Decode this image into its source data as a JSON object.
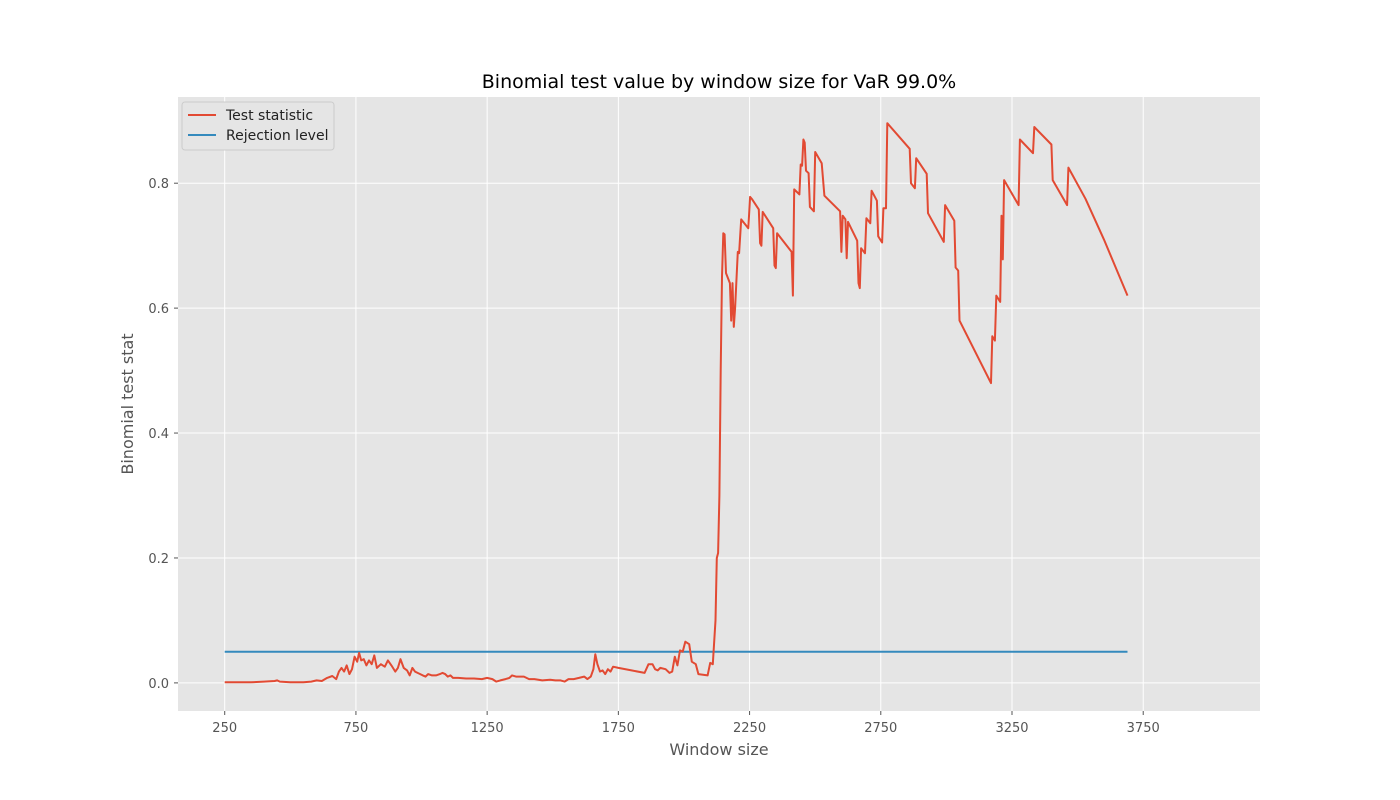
{
  "chart_data": {
    "type": "line",
    "title": "Binomial test value by window size for VaR 99.0%",
    "xlabel": "Window size",
    "ylabel": "Binomial test stat",
    "xlim": [
      72,
      4195
    ],
    "ylim": [
      -0.045,
      0.938
    ],
    "xticks": [
      250,
      750,
      1250,
      1750,
      2250,
      2750,
      3250,
      3750
    ],
    "yticks": [
      0.0,
      0.2,
      0.4,
      0.6,
      0.8
    ],
    "ytick_labels": [
      "0.0",
      "0.2",
      "0.4",
      "0.6",
      "0.8"
    ],
    "grid": true,
    "legend_position": "top-left",
    "series": [
      {
        "name": "Test statistic",
        "color": "#E24A33",
        "points": [
          [
            250,
            0.001
          ],
          [
            300,
            0.001
          ],
          [
            350,
            0.001
          ],
          [
            400,
            0.002
          ],
          [
            440,
            0.003
          ],
          [
            450,
            0.004
          ],
          [
            460,
            0.002
          ],
          [
            500,
            0.001
          ],
          [
            550,
            0.001
          ],
          [
            580,
            0.002
          ],
          [
            600,
            0.004
          ],
          [
            620,
            0.003
          ],
          [
            640,
            0.008
          ],
          [
            660,
            0.011
          ],
          [
            675,
            0.006
          ],
          [
            685,
            0.018
          ],
          [
            695,
            0.024
          ],
          [
            705,
            0.018
          ],
          [
            715,
            0.028
          ],
          [
            725,
            0.014
          ],
          [
            735,
            0.022
          ],
          [
            745,
            0.042
          ],
          [
            755,
            0.034
          ],
          [
            762,
            0.048
          ],
          [
            770,
            0.036
          ],
          [
            780,
            0.038
          ],
          [
            790,
            0.028
          ],
          [
            800,
            0.036
          ],
          [
            810,
            0.03
          ],
          [
            820,
            0.044
          ],
          [
            830,
            0.024
          ],
          [
            845,
            0.03
          ],
          [
            860,
            0.026
          ],
          [
            872,
            0.036
          ],
          [
            885,
            0.028
          ],
          [
            900,
            0.018
          ],
          [
            910,
            0.024
          ],
          [
            920,
            0.038
          ],
          [
            932,
            0.024
          ],
          [
            945,
            0.02
          ],
          [
            955,
            0.012
          ],
          [
            965,
            0.024
          ],
          [
            975,
            0.018
          ],
          [
            985,
            0.016
          ],
          [
            995,
            0.014
          ],
          [
            1005,
            0.012
          ],
          [
            1015,
            0.01
          ],
          [
            1025,
            0.014
          ],
          [
            1040,
            0.012
          ],
          [
            1055,
            0.012
          ],
          [
            1070,
            0.014
          ],
          [
            1080,
            0.016
          ],
          [
            1090,
            0.014
          ],
          [
            1100,
            0.01
          ],
          [
            1110,
            0.012
          ],
          [
            1120,
            0.008
          ],
          [
            1140,
            0.008
          ],
          [
            1170,
            0.007
          ],
          [
            1200,
            0.007
          ],
          [
            1230,
            0.006
          ],
          [
            1250,
            0.008
          ],
          [
            1270,
            0.006
          ],
          [
            1285,
            0.002
          ],
          [
            1300,
            0.004
          ],
          [
            1320,
            0.006
          ],
          [
            1335,
            0.008
          ],
          [
            1345,
            0.012
          ],
          [
            1360,
            0.01
          ],
          [
            1390,
            0.01
          ],
          [
            1410,
            0.006
          ],
          [
            1430,
            0.006
          ],
          [
            1460,
            0.004
          ],
          [
            1490,
            0.005
          ],
          [
            1510,
            0.004
          ],
          [
            1530,
            0.004
          ],
          [
            1545,
            0.002
          ],
          [
            1560,
            0.006
          ],
          [
            1580,
            0.006
          ],
          [
            1600,
            0.008
          ],
          [
            1620,
            0.01
          ],
          [
            1632,
            0.006
          ],
          [
            1645,
            0.01
          ],
          [
            1655,
            0.022
          ],
          [
            1662,
            0.046
          ],
          [
            1670,
            0.03
          ],
          [
            1680,
            0.018
          ],
          [
            1690,
            0.02
          ],
          [
            1700,
            0.014
          ],
          [
            1710,
            0.022
          ],
          [
            1720,
            0.018
          ],
          [
            1730,
            0.026
          ],
          [
            1750,
            0.024
          ],
          [
            1800,
            0.02
          ],
          [
            1850,
            0.016
          ],
          [
            1865,
            0.03
          ],
          [
            1880,
            0.03
          ],
          [
            1890,
            0.022
          ],
          [
            1900,
            0.02
          ],
          [
            1910,
            0.024
          ],
          [
            1930,
            0.022
          ],
          [
            1945,
            0.016
          ],
          [
            1955,
            0.018
          ],
          [
            1965,
            0.042
          ],
          [
            1975,
            0.028
          ],
          [
            1985,
            0.052
          ],
          [
            1995,
            0.05
          ],
          [
            2005,
            0.066
          ],
          [
            2020,
            0.062
          ],
          [
            2030,
            0.034
          ],
          [
            2045,
            0.03
          ],
          [
            2055,
            0.014
          ],
          [
            2090,
            0.012
          ],
          [
            2100,
            0.032
          ],
          [
            2110,
            0.03
          ],
          [
            2120,
            0.1
          ],
          [
            2125,
            0.2
          ],
          [
            2130,
            0.208
          ],
          [
            2135,
            0.3
          ],
          [
            2140,
            0.5
          ],
          [
            2145,
            0.65
          ],
          [
            2150,
            0.72
          ],
          [
            2155,
            0.718
          ],
          [
            2160,
            0.656
          ],
          [
            2175,
            0.64
          ],
          [
            2180,
            0.58
          ],
          [
            2185,
            0.64
          ],
          [
            2190,
            0.57
          ],
          [
            2195,
            0.6
          ],
          [
            2205,
            0.69
          ],
          [
            2210,
            0.688
          ],
          [
            2218,
            0.742
          ],
          [
            2245,
            0.728
          ],
          [
            2252,
            0.778
          ],
          [
            2260,
            0.774
          ],
          [
            2285,
            0.758
          ],
          [
            2290,
            0.704
          ],
          [
            2295,
            0.7
          ],
          [
            2300,
            0.754
          ],
          [
            2340,
            0.728
          ],
          [
            2345,
            0.668
          ],
          [
            2350,
            0.664
          ],
          [
            2355,
            0.72
          ],
          [
            2410,
            0.69
          ],
          [
            2415,
            0.62
          ],
          [
            2420,
            0.79
          ],
          [
            2440,
            0.782
          ],
          [
            2445,
            0.83
          ],
          [
            2450,
            0.828
          ],
          [
            2455,
            0.87
          ],
          [
            2460,
            0.865
          ],
          [
            2465,
            0.82
          ],
          [
            2475,
            0.816
          ],
          [
            2480,
            0.762
          ],
          [
            2495,
            0.755
          ],
          [
            2500,
            0.85
          ],
          [
            2525,
            0.832
          ],
          [
            2535,
            0.78
          ],
          [
            2595,
            0.755
          ],
          [
            2600,
            0.69
          ],
          [
            2605,
            0.748
          ],
          [
            2615,
            0.742
          ],
          [
            2620,
            0.68
          ],
          [
            2625,
            0.738
          ],
          [
            2660,
            0.708
          ],
          [
            2665,
            0.64
          ],
          [
            2670,
            0.632
          ],
          [
            2675,
            0.696
          ],
          [
            2690,
            0.688
          ],
          [
            2695,
            0.744
          ],
          [
            2710,
            0.736
          ],
          [
            2715,
            0.788
          ],
          [
            2735,
            0.772
          ],
          [
            2740,
            0.715
          ],
          [
            2755,
            0.705
          ],
          [
            2760,
            0.76
          ],
          [
            2770,
            0.76
          ],
          [
            2775,
            0.896
          ],
          [
            2860,
            0.855
          ],
          [
            2865,
            0.8
          ],
          [
            2880,
            0.792
          ],
          [
            2885,
            0.84
          ],
          [
            2925,
            0.815
          ],
          [
            2930,
            0.752
          ],
          [
            2990,
            0.706
          ],
          [
            2995,
            0.765
          ],
          [
            3030,
            0.74
          ],
          [
            3035,
            0.665
          ],
          [
            3045,
            0.66
          ],
          [
            3050,
            0.58
          ],
          [
            3170,
            0.48
          ],
          [
            3175,
            0.555
          ],
          [
            3185,
            0.548
          ],
          [
            3190,
            0.62
          ],
          [
            3205,
            0.61
          ],
          [
            3210,
            0.748
          ],
          [
            3215,
            0.678
          ],
          [
            3220,
            0.805
          ],
          [
            3275,
            0.765
          ],
          [
            3280,
            0.87
          ],
          [
            3330,
            0.848
          ],
          [
            3335,
            0.89
          ],
          [
            3400,
            0.862
          ],
          [
            3405,
            0.805
          ],
          [
            3460,
            0.765
          ],
          [
            3465,
            0.825
          ],
          [
            3530,
            0.775
          ],
          [
            3600,
            0.71
          ],
          [
            3650,
            0.66
          ],
          [
            3690,
            0.62
          ]
        ]
      },
      {
        "name": "Rejection level",
        "color": "#348ABD",
        "points": [
          [
            250,
            0.05
          ],
          [
            3690,
            0.05
          ]
        ]
      }
    ]
  }
}
